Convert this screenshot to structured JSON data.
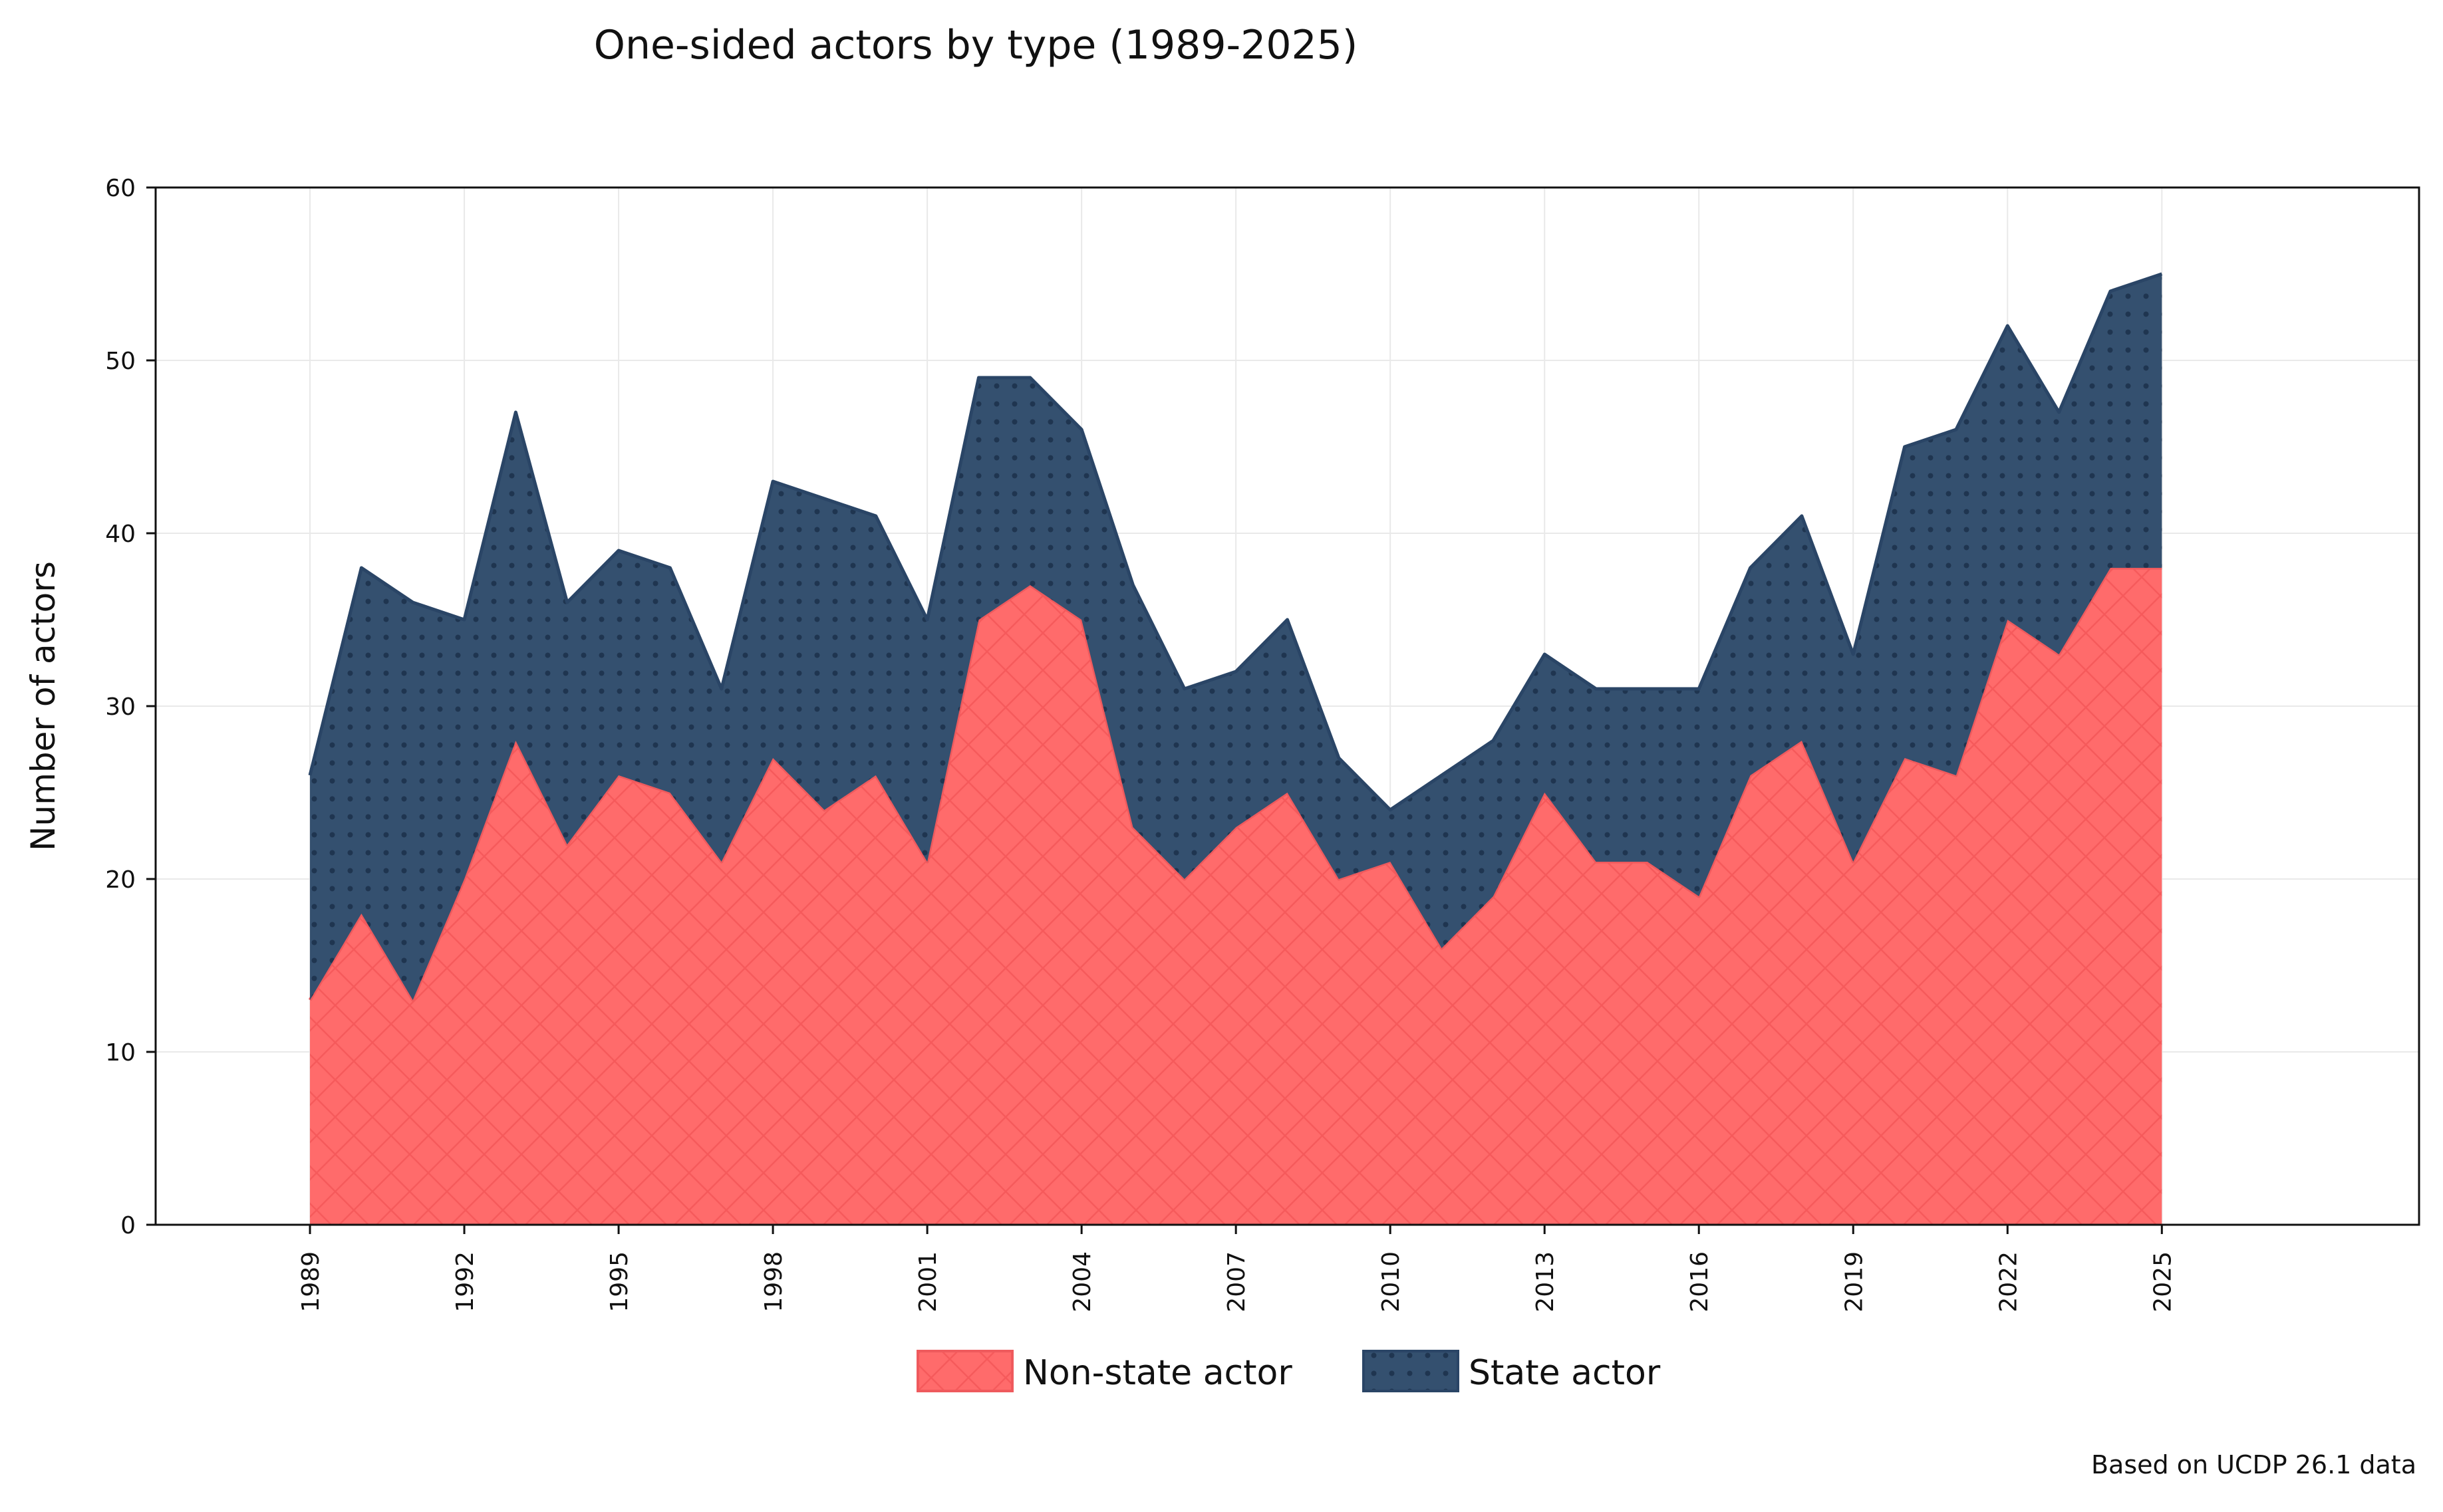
{
  "chart_data": {
    "type": "area",
    "stacked": true,
    "title": "One-sided actors by type (1989-2025)",
    "xlabel": "",
    "ylabel": "Number of actors",
    "footnote": "Based on UCDP 26.1 data",
    "x": [
      1989,
      1990,
      1991,
      1992,
      1993,
      1994,
      1995,
      1996,
      1997,
      1998,
      1999,
      2000,
      2001,
      2002,
      2003,
      2004,
      2005,
      2006,
      2007,
      2008,
      2009,
      2010,
      2011,
      2012,
      2013,
      2014,
      2015,
      2016,
      2017,
      2018,
      2019,
      2020,
      2021,
      2022,
      2023,
      2024,
      2025
    ],
    "x_ticks": [
      "1989",
      "1992",
      "1995",
      "1998",
      "2001",
      "2004",
      "2007",
      "2010",
      "2013",
      "2016",
      "2019",
      "2022",
      "2025"
    ],
    "y_ticks": [
      "0",
      "10",
      "20",
      "30",
      "40",
      "50",
      "60"
    ],
    "xlim": [
      1986,
      2030
    ],
    "ylim": [
      0,
      60
    ],
    "grid": true,
    "legend_position": "bottom-center",
    "series": [
      {
        "name": "Non-state actor",
        "color": "#ff6b6b",
        "pattern": "crosshatch",
        "values": [
          13,
          18,
          13,
          20,
          28,
          22,
          26,
          25,
          21,
          27,
          24,
          26,
          21,
          35,
          37,
          35,
          23,
          20,
          23,
          25,
          20,
          21,
          16,
          19,
          25,
          21,
          21,
          19,
          26,
          28,
          21,
          27,
          26,
          35,
          33,
          38,
          38
        ]
      },
      {
        "name": "State actor",
        "color": "#34506f",
        "pattern": "dots",
        "values": [
          13,
          20,
          23,
          15,
          19,
          14,
          13,
          13,
          10,
          16,
          18,
          15,
          14,
          14,
          12,
          11,
          14,
          11,
          9,
          10,
          7,
          3,
          10,
          9,
          8,
          10,
          10,
          12,
          12,
          13,
          12,
          18,
          20,
          17,
          14,
          16,
          17
        ]
      }
    ]
  }
}
